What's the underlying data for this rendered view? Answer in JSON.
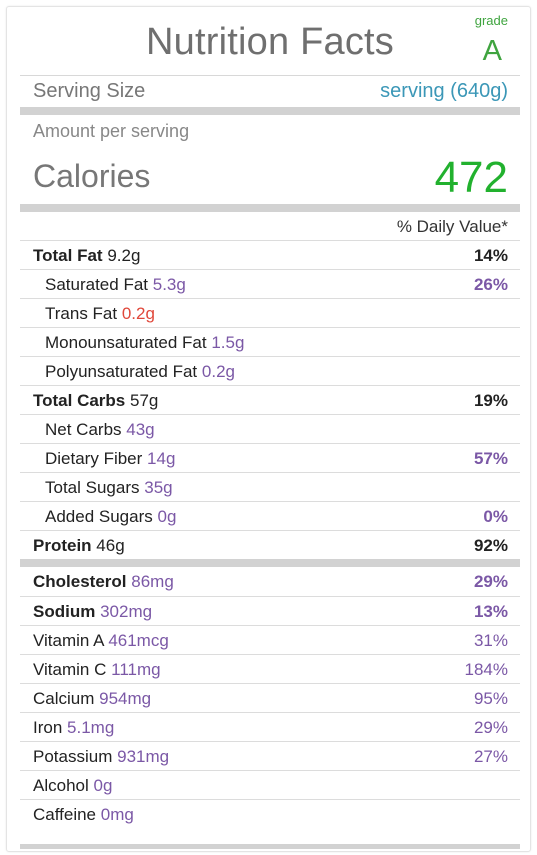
{
  "title": "Nutrition Facts",
  "grade": {
    "label": "grade",
    "value": "A"
  },
  "serving": {
    "label": "Serving Size",
    "value": "serving (640g)"
  },
  "amount_label": "Amount per serving",
  "calories": {
    "label": "Calories",
    "value": "472"
  },
  "daily_value_header": "% Daily Value*",
  "colors": {
    "title": "#6f6f6f",
    "grade": "#3fa43f",
    "serving_value": "#3b97b7",
    "calories_value": "#22b12e",
    "amount": "#7b58a6",
    "trans_fat_amount": "#e0473a"
  },
  "macros": [
    {
      "name": "Total Fat",
      "amount": "9.2g",
      "pct": "14%"
    },
    {
      "name": "Saturated Fat",
      "amount": "5.3g",
      "pct": "26%"
    },
    {
      "name": "Trans Fat",
      "amount": "0.2g",
      "pct": ""
    },
    {
      "name": "Monounsaturated Fat",
      "amount": "1.5g",
      "pct": ""
    },
    {
      "name": "Polyunsaturated Fat",
      "amount": "0.2g",
      "pct": ""
    },
    {
      "name": "Total Carbs",
      "amount": "57g",
      "pct": "19%"
    },
    {
      "name": "Net Carbs",
      "amount": "43g",
      "pct": ""
    },
    {
      "name": "Dietary Fiber",
      "amount": "14g",
      "pct": "57%"
    },
    {
      "name": "Total Sugars",
      "amount": "35g",
      "pct": ""
    },
    {
      "name": "Added Sugars",
      "amount": "0g",
      "pct": "0%"
    },
    {
      "name": "Protein",
      "amount": "46g",
      "pct": "92%"
    }
  ],
  "micros": [
    {
      "name": "Cholesterol",
      "amount": "86mg",
      "pct": "29%"
    },
    {
      "name": "Sodium",
      "amount": "302mg",
      "pct": "13%"
    },
    {
      "name": "Vitamin A",
      "amount": "461mcg",
      "pct": "31%"
    },
    {
      "name": "Vitamin C",
      "amount": "111mg",
      "pct": "184%"
    },
    {
      "name": "Calcium",
      "amount": "954mg",
      "pct": "95%"
    },
    {
      "name": "Iron",
      "amount": "5.1mg",
      "pct": "29%"
    },
    {
      "name": "Potassium",
      "amount": "931mg",
      "pct": "27%"
    },
    {
      "name": "Alcohol",
      "amount": "0g",
      "pct": ""
    },
    {
      "name": "Caffeine",
      "amount": "0mg",
      "pct": ""
    }
  ]
}
